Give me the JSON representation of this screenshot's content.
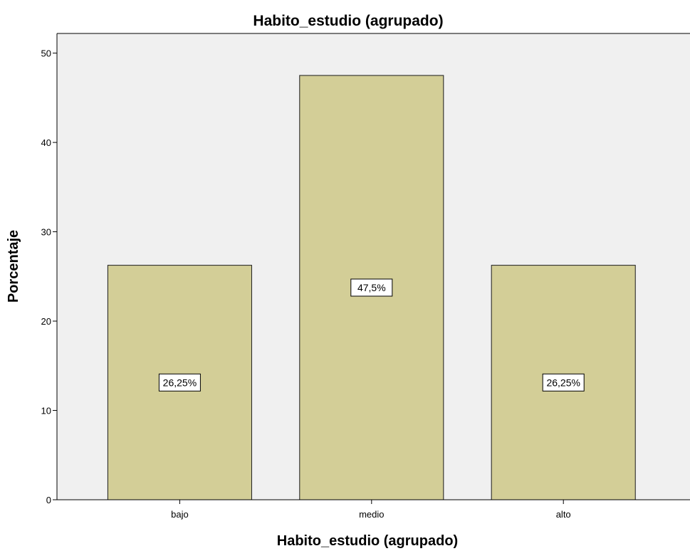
{
  "chart_data": {
    "type": "bar",
    "title": "Habito_estudio (agrupado)",
    "xlabel": "Habito_estudio (agrupado)",
    "ylabel": "Porcentaje",
    "categories": [
      "bajo",
      "medio",
      "alto"
    ],
    "values": [
      26.25,
      47.5,
      26.25
    ],
    "data_labels": [
      "26,25%",
      "47,5%",
      "26,25%"
    ],
    "yticks": [
      0,
      10,
      20,
      30,
      40,
      50
    ],
    "ylim": [
      0,
      52.2
    ],
    "grid": false,
    "colors": {
      "plot_background": "#f0f0f0",
      "bar_fill": "#d3ce97",
      "bar_stroke": "#1a1a1a",
      "axis": "#000000"
    }
  }
}
